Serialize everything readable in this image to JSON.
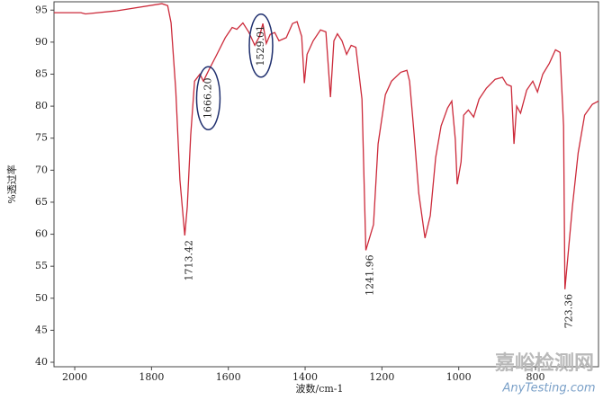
{
  "chart_data": {
    "type": "line",
    "xlabel": "波数/cm-1",
    "ylabel": "%透过率",
    "color": "#cc2a3a",
    "xlim": [
      2054,
      636
    ],
    "ylim": [
      39.3,
      96.3
    ],
    "xticks": [
      2000,
      1800,
      1600,
      1400,
      1200,
      1000,
      800
    ],
    "yticks": [
      40,
      45,
      50,
      55,
      60,
      65,
      70,
      75,
      80,
      85,
      90,
      95
    ],
    "x": [
      2054,
      1984,
      1972,
      1890,
      1773,
      1758,
      1749,
      1737,
      1726,
      1713.42,
      1707,
      1698,
      1688,
      1674,
      1665,
      1651,
      1632,
      1608,
      1590,
      1578,
      1562,
      1547,
      1531,
      1519,
      1510,
      1501,
      1491,
      1479,
      1468,
      1449,
      1433,
      1421,
      1409,
      1402,
      1395,
      1379,
      1360,
      1346,
      1334,
      1325,
      1316,
      1304,
      1292,
      1280,
      1268,
      1252,
      1241.96,
      1222,
      1210,
      1191,
      1175,
      1151,
      1135,
      1128,
      1116,
      1104,
      1088,
      1074,
      1060,
      1046,
      1029,
      1018,
      1009,
      1004,
      994,
      987,
      975,
      961,
      947,
      928,
      905,
      886,
      875,
      863,
      856,
      849,
      839,
      823,
      807,
      795,
      781,
      764,
      748,
      736,
      727,
      723.36,
      704,
      689,
      672,
      652,
      636
    ],
    "values": [
      94.6,
      94.6,
      94.4,
      94.9,
      96,
      95.7,
      93,
      82.5,
      68.5,
      59.8,
      64.3,
      75.5,
      83.9,
      85,
      83.9,
      85.6,
      87.8,
      90.7,
      92.3,
      92,
      93,
      91.6,
      89.5,
      90.9,
      92.9,
      89.8,
      91.2,
      91.5,
      90.2,
      90.7,
      92.9,
      93.2,
      90.9,
      83.6,
      88.1,
      90.2,
      91.9,
      91.6,
      81.4,
      90.2,
      91.3,
      90.2,
      88.1,
      89.5,
      89.2,
      81.1,
      57.5,
      61.5,
      74.1,
      81.8,
      83.9,
      85.3,
      85.6,
      83.9,
      75.5,
      66.4,
      59.4,
      62.9,
      72,
      76.9,
      79.7,
      80.8,
      74.8,
      67.8,
      71.3,
      78.6,
      79.4,
      78.3,
      81.1,
      82.8,
      84.2,
      84.5,
      83.4,
      83.1,
      74.1,
      80,
      78.9,
      82.5,
      83.9,
      82.2,
      85,
      86.7,
      88.8,
      88.4,
      76.9,
      51.4,
      64.3,
      72.7,
      78.6,
      80.3,
      80.8
    ],
    "annotations": [
      {
        "label": "1713.42",
        "x": 1713.42,
        "circled": false
      },
      {
        "label": "1666.20",
        "x": 1666.2,
        "circled": true
      },
      {
        "label": "1529.01",
        "x": 1529.01,
        "circled": true
      },
      {
        "label": "1241.96",
        "x": 1241.96,
        "circled": false
      },
      {
        "label": "723.36",
        "x": 723.36,
        "circled": false
      }
    ],
    "watermark": {
      "title": "嘉峪检测网",
      "url": "AnyTesting.com"
    }
  }
}
